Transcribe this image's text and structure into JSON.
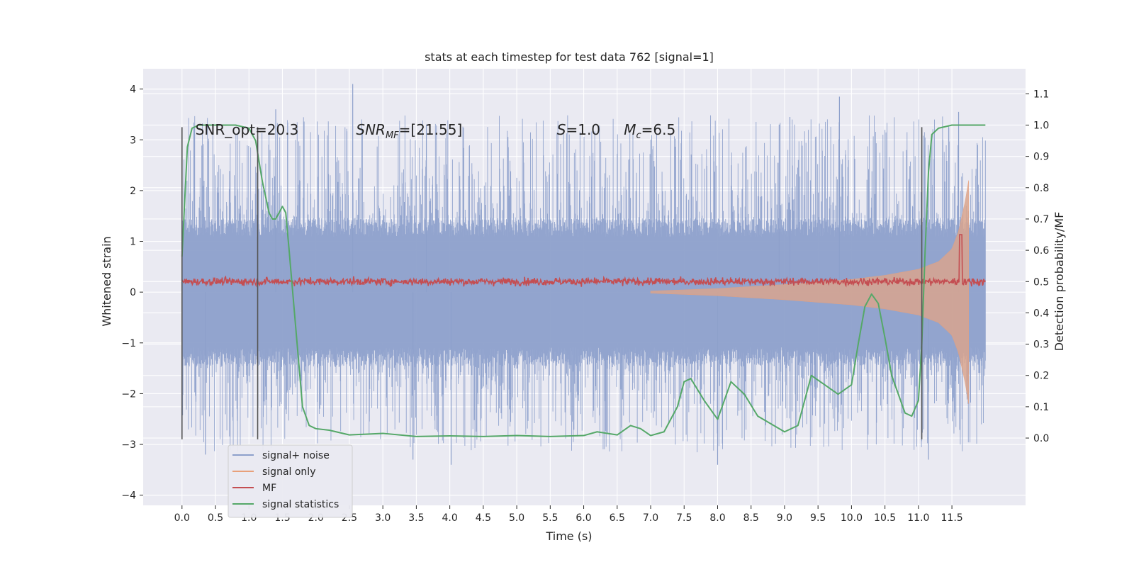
{
  "chart_data": {
    "type": "line",
    "title": "stats at each timestep for test data 762 [signal=1]",
    "xlabel": "Time (s)",
    "ylabel": "Whitened strain",
    "y2label": "Detection probability/MF",
    "xlim": [
      -0.58,
      12.6
    ],
    "ylim": [
      -4.2,
      4.4
    ],
    "y2lim": [
      -0.215,
      1.18
    ],
    "x_ticks": [
      0.0,
      0.5,
      1.0,
      1.5,
      2.0,
      2.5,
      3.0,
      3.5,
      4.0,
      4.5,
      5.0,
      5.5,
      6.0,
      6.5,
      7.0,
      7.5,
      8.0,
      8.5,
      9.0,
      9.5,
      10.0,
      10.5,
      11.0,
      11.5
    ],
    "x_tick_labels": [
      "0.0",
      "0.5",
      "1.0",
      "1.5",
      "2.0",
      "2.5",
      "3.0",
      "3.5",
      "4.0",
      "4.5",
      "5.0",
      "5.5",
      "6.0",
      "6.5",
      "7.0",
      "7.5",
      "8.0",
      "8.5",
      "9.0",
      "9.5",
      "10.0",
      "10.5",
      "11.0",
      "11.5"
    ],
    "y_ticks": [
      4,
      3,
      2,
      1,
      0,
      -1,
      -2,
      -3,
      -4
    ],
    "y_tick_labels": [
      "4",
      "3",
      "2",
      "1",
      "0",
      "−1",
      "−2",
      "−3",
      "−4"
    ],
    "y2_ticks": [
      1.1,
      1.0,
      0.9,
      0.8,
      0.7,
      0.6,
      0.5,
      0.4,
      0.3,
      0.2,
      0.1,
      0.0
    ],
    "y2_tick_labels": [
      "1.1",
      "1.0",
      "0.9",
      "0.8",
      "0.7",
      "0.6",
      "0.5",
      "0.4",
      "0.3",
      "0.2",
      "0.1",
      "0.0"
    ],
    "grid": true,
    "legend_position": "lower-left",
    "annotations": [
      {
        "text": "SNR_opt=20.3",
        "x": 0.2,
        "y": 3.2
      },
      {
        "text": "SNR_MF=[21.55]",
        "x": 2.6,
        "y": 3.2
      },
      {
        "text": "S=1.0",
        "x": 5.6,
        "y": 3.2
      },
      {
        "text": "M_c=6.5",
        "x": 6.6,
        "y": 3.2
      }
    ],
    "vertical_markers": [
      {
        "x": 0.0,
        "y_range": [
          -2.9,
          3.25
        ]
      },
      {
        "x": 1.13,
        "y_range": [
          -2.9,
          3.25
        ]
      },
      {
        "x": 11.05,
        "y_range": [
          -2.9,
          3.25
        ]
      }
    ],
    "series": [
      {
        "name": "signal+ noise",
        "color": "#8da0cb",
        "axis": "left",
        "x_range": [
          0.0,
          12.0
        ],
        "band": [
          -1.45,
          1.45
        ],
        "typical_peak": 3.3,
        "min_value": -3.4,
        "max_value": 4.1
      },
      {
        "name": "signal only",
        "color": "#e8a07a",
        "axis": "left",
        "x_range": [
          0.0,
          11.75
        ],
        "envelope": {
          "x": [
            7.0,
            8.0,
            9.0,
            10.0,
            10.5,
            11.0,
            11.3,
            11.5,
            11.6,
            11.7,
            11.75
          ],
          "amp": [
            0.02,
            0.07,
            0.15,
            0.25,
            0.33,
            0.45,
            0.6,
            0.85,
            1.2,
            1.8,
            2.2
          ]
        }
      },
      {
        "name": "MF",
        "color": "#c44e52",
        "axis": "right",
        "x_range": [
          0.0,
          12.0
        ],
        "baseline": 0.5,
        "spike": {
          "x": 11.63,
          "value": 0.65
        }
      },
      {
        "name": "signal statistics",
        "color": "#55a868",
        "axis": "right",
        "x": [
          0.0,
          0.08,
          0.15,
          0.25,
          0.5,
          0.8,
          1.0,
          1.1,
          1.2,
          1.3,
          1.35,
          1.4,
          1.45,
          1.5,
          1.55,
          1.6,
          1.7,
          1.8,
          1.9,
          2.0,
          2.2,
          2.5,
          3.0,
          3.5,
          4.0,
          4.5,
          5.0,
          5.5,
          6.0,
          6.2,
          6.5,
          6.7,
          6.85,
          7.0,
          7.2,
          7.4,
          7.5,
          7.6,
          7.8,
          8.0,
          8.2,
          8.4,
          8.6,
          9.0,
          9.2,
          9.4,
          9.6,
          9.8,
          10.0,
          10.1,
          10.2,
          10.3,
          10.4,
          10.5,
          10.6,
          10.8,
          10.9,
          11.0,
          11.05,
          11.1,
          11.15,
          11.2,
          11.3,
          11.5,
          11.75,
          12.0
        ],
        "y": [
          0.58,
          0.93,
          0.99,
          1.0,
          1.0,
          1.0,
          0.99,
          0.95,
          0.82,
          0.72,
          0.7,
          0.7,
          0.72,
          0.74,
          0.72,
          0.6,
          0.35,
          0.1,
          0.04,
          0.03,
          0.025,
          0.01,
          0.015,
          0.005,
          0.007,
          0.005,
          0.008,
          0.005,
          0.008,
          0.02,
          0.01,
          0.04,
          0.03,
          0.008,
          0.02,
          0.1,
          0.18,
          0.19,
          0.12,
          0.06,
          0.18,
          0.14,
          0.07,
          0.02,
          0.04,
          0.2,
          0.17,
          0.14,
          0.17,
          0.3,
          0.42,
          0.46,
          0.43,
          0.32,
          0.2,
          0.08,
          0.07,
          0.12,
          0.3,
          0.6,
          0.85,
          0.97,
          0.99,
          1.0,
          1.0,
          1.0
        ]
      }
    ]
  }
}
